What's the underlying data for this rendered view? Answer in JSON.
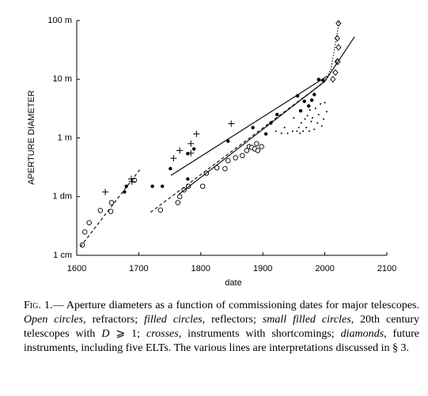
{
  "chart_data": {
    "type": "scatter",
    "xlabel": "date",
    "ylabel": "APERTURE DIAMETER",
    "xlim": [
      1600,
      2100
    ],
    "xticks": [
      1600,
      1700,
      1800,
      1900,
      2000,
      2100
    ],
    "ylim": [
      0.01,
      100
    ],
    "log_y": true,
    "yticks": [
      {
        "value": 0.01,
        "label": "1 cm"
      },
      {
        "value": 0.1,
        "label": "1 dm"
      },
      {
        "value": 1,
        "label": "1 m"
      },
      {
        "value": 10,
        "label": "10 m"
      },
      {
        "value": 100,
        "label": "100 m"
      }
    ],
    "series": [
      {
        "marker": "open-circle",
        "color": "#000000",
        "x": [
          1609,
          1613,
          1620,
          1638,
          1655,
          1656,
          1693,
          1735,
          1763,
          1766,
          1773,
          1780,
          1803,
          1809,
          1826,
          1839,
          1844,
          1856,
          1867,
          1874,
          1878,
          1882,
          1887,
          1890,
          1892,
          1898
        ],
        "values": [
          0.015,
          0.025,
          0.036,
          0.058,
          0.056,
          0.079,
          0.19,
          0.059,
          0.079,
          0.1,
          0.13,
          0.15,
          0.15,
          0.25,
          0.31,
          0.3,
          0.41,
          0.46,
          0.5,
          0.61,
          0.71,
          0.69,
          0.65,
          0.8,
          0.61,
          0.71
        ]
      },
      {
        "marker": "filled-circle",
        "color": "#000000",
        "x": [
          1677,
          1680,
          1722,
          1738,
          1751,
          1779,
          1779,
          1789,
          1844,
          1884,
          1905,
          1913,
          1923,
          1956,
          1961,
          1967,
          1974,
          1979,
          1983,
          1990,
          1997
        ],
        "values": [
          0.12,
          0.15,
          0.15,
          0.15,
          0.3,
          0.2,
          0.54,
          0.65,
          0.88,
          1.5,
          1.17,
          1.8,
          2.5,
          5.2,
          2.9,
          4.2,
          3.5,
          4.4,
          5.5,
          9.9,
          9.6
        ]
      },
      {
        "marker": "small-dot",
        "color": "#000000",
        "x": [
          1921,
          1930,
          1935,
          1940,
          1948,
          1950,
          1955,
          1958,
          1960,
          1962,
          1965,
          1968,
          1970,
          1972,
          1975,
          1976,
          1978,
          1980,
          1983,
          1985,
          1988,
          1990,
          1993,
          1995,
          1998,
          2000,
          2003
        ],
        "values": [
          1.3,
          1.2,
          1.5,
          1.2,
          1.3,
          2.2,
          1.3,
          1.5,
          1.2,
          1.8,
          1.3,
          2.1,
          1.5,
          2.4,
          1.3,
          3.0,
          1.9,
          2.2,
          1.4,
          3.2,
          1.8,
          2.5,
          3.8,
          1.6,
          2.1,
          4.0,
          2.8
        ]
      },
      {
        "marker": "cross",
        "color": "#000000",
        "x": [
          1646,
          1688,
          1689,
          1756,
          1766,
          1784,
          1784,
          1793,
          1849
        ],
        "values": [
          0.12,
          0.2,
          0.18,
          0.45,
          0.61,
          0.8,
          0.55,
          1.17,
          1.75
        ]
      },
      {
        "marker": "diamond",
        "color": "#000000",
        "x": [
          2013,
          2017,
          2020,
          2021,
          2020,
          2022,
          2022
        ],
        "values": [
          10,
          13,
          20,
          20,
          50,
          35,
          90
        ]
      },
      {
        "line": "solid",
        "color": "#000000",
        "x": [
          1752,
          2003
        ],
        "values": [
          0.23,
          11.2
        ]
      },
      {
        "line": "solid",
        "color": "#000000",
        "x": [
          1765,
          2000,
          2048
        ],
        "values": [
          0.11,
          9.2,
          53
        ]
      },
      {
        "line": "dashed",
        "color": "#000000",
        "x": [
          1606,
          1703
        ],
        "values": [
          0.014,
          0.3
        ]
      },
      {
        "line": "dashed",
        "color": "#000000",
        "x": [
          1719,
          1999
        ],
        "values": [
          0.054,
          9.0
        ]
      },
      {
        "line": "dotted",
        "color": "#000000",
        "x": [
          1999,
          2010,
          2018,
          2023
        ],
        "values": [
          9.0,
          15,
          45,
          100
        ]
      }
    ],
    "caption": [
      {
        "text": "Fig. 1.",
        "style": "small-caps"
      },
      {
        "text": "— Aperture diameters as a function of commissioning dates for major telescopes. ",
        "style": "normal"
      },
      {
        "text": "Open circles",
        "style": "italic"
      },
      {
        "text": ", refractors; ",
        "style": "normal"
      },
      {
        "text": "filled circles",
        "style": "italic"
      },
      {
        "text": ", reflectors; ",
        "style": "normal"
      },
      {
        "text": "small filled circles",
        "style": "italic"
      },
      {
        "text": ", 20th century telescopes with ",
        "style": "normal"
      },
      {
        "text": "D",
        "style": "italic"
      },
      {
        "text": " ⩾ 1; ",
        "style": "normal"
      },
      {
        "text": "crosses",
        "style": "italic"
      },
      {
        "text": ", instruments with shortcomings; ",
        "style": "normal"
      },
      {
        "text": "diamonds",
        "style": "italic"
      },
      {
        "text": ", future instruments, including five ELTs. The various lines are interpretations discussed in § 3.",
        "style": "normal"
      }
    ]
  }
}
